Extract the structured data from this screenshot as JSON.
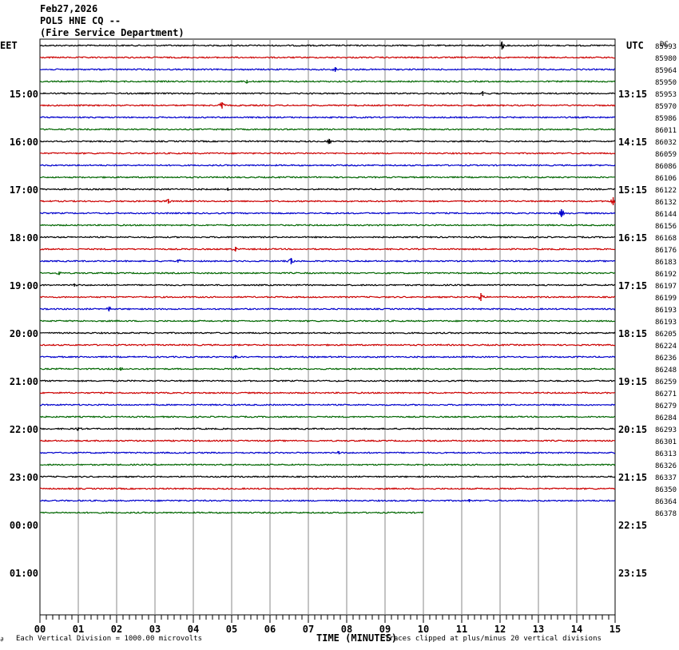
{
  "header": {
    "date": "Feb27,2026",
    "station": "POL5 HNE CQ --",
    "agency": "(Fire Service Department)"
  },
  "chart_data": {
    "type": "line",
    "title": "",
    "left_axis_label": "EET",
    "right_axis_label": "UTC",
    "corner_label": "DC",
    "xlabel": "TIME (MINUTES)",
    "x_ticks": [
      "00",
      "01",
      "02",
      "03",
      "04",
      "05",
      "06",
      "07",
      "08",
      "09",
      "10",
      "11",
      "12",
      "13",
      "14",
      "15"
    ],
    "xlim": [
      0,
      15
    ],
    "grid": true,
    "footer_left": "Each Vertical Division = 1000.00 microvolts",
    "footer_right": "Traces clipped at plus/minus 20 vertical divisions",
    "footer_mark": "∂",
    "left_time_labels": [
      "15:00",
      "16:00",
      "17:00",
      "18:00",
      "19:00",
      "20:00",
      "21:00",
      "22:00",
      "23:00",
      "00:00",
      "01:00"
    ],
    "right_time_labels": [
      "13:15",
      "14:15",
      "15:15",
      "16:15",
      "17:15",
      "18:15",
      "19:15",
      "20:15",
      "21:15",
      "22:15",
      "23:15"
    ],
    "trace_colors": [
      "#000000",
      "#cc0000",
      "#0000cc",
      "#006600"
    ],
    "row_count_values": [
      85993,
      85980,
      85964,
      85950,
      85953,
      85970,
      85986,
      86011,
      86032,
      86059,
      86086,
      86106,
      86122,
      86132,
      86144,
      86156,
      86168,
      86176,
      86183,
      86192,
      86197,
      86199,
      86193,
      86193,
      86205,
      86224,
      86236,
      86248,
      86259,
      86271,
      86279,
      86284,
      86293,
      86301,
      86313,
      86326,
      86337,
      86350,
      86364,
      86378
    ],
    "last_row_end_minute": 10,
    "events": [
      {
        "row": 0,
        "minute": 12.05,
        "amp": 5
      },
      {
        "row": 2,
        "minute": 7.7,
        "amp": 3
      },
      {
        "row": 3,
        "minute": 5.4,
        "amp": 2
      },
      {
        "row": 4,
        "minute": 11.55,
        "amp": 3
      },
      {
        "row": 5,
        "minute": 4.75,
        "amp": 4
      },
      {
        "row": 8,
        "minute": 7.55,
        "amp": 3
      },
      {
        "row": 12,
        "minute": 4.9,
        "amp": 2
      },
      {
        "row": 13,
        "minute": 3.35,
        "amp": 3
      },
      {
        "row": 13,
        "minute": 14.95,
        "amp": 5
      },
      {
        "row": 14,
        "minute": 13.6,
        "amp": 5
      },
      {
        "row": 17,
        "minute": 5.1,
        "amp": 3
      },
      {
        "row": 18,
        "minute": 3.6,
        "amp": 2
      },
      {
        "row": 18,
        "minute": 6.55,
        "amp": 4
      },
      {
        "row": 19,
        "minute": 0.5,
        "amp": 2
      },
      {
        "row": 20,
        "minute": 0.9,
        "amp": 2
      },
      {
        "row": 21,
        "minute": 11.5,
        "amp": 5
      },
      {
        "row": 22,
        "minute": 1.8,
        "amp": 3
      },
      {
        "row": 26,
        "minute": 5.1,
        "amp": 2
      },
      {
        "row": 27,
        "minute": 2.1,
        "amp": 2
      },
      {
        "row": 32,
        "minute": 1.0,
        "amp": 2
      },
      {
        "row": 34,
        "minute": 7.8,
        "amp": 2
      },
      {
        "row": 38,
        "minute": 11.2,
        "amp": 2
      }
    ]
  }
}
